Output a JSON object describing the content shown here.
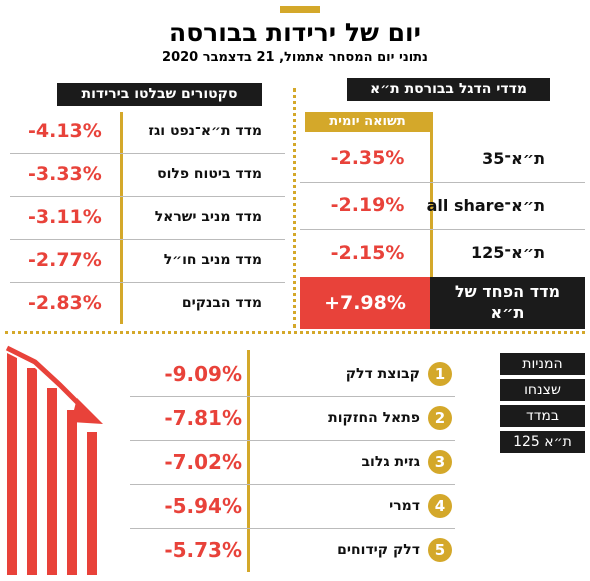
{
  "header": {
    "title": "יום של ירידות בבורסה",
    "subtitle": "נתוני יום המסחר אתמול, 21 בדצמבר 2020"
  },
  "flagship": {
    "title": "מדדי הדגל בבורסת ת״א",
    "column": "תשואה יומית",
    "rows": [
      {
        "name": "ת״א־35",
        "value": "-2.35%"
      },
      {
        "name": "ת״א־all share",
        "value": "-2.19%"
      },
      {
        "name": "ת״א־125",
        "value": "-2.15%"
      },
      {
        "name": "מדד הפחד של ת״א",
        "value": "+7.98%"
      }
    ]
  },
  "sectors": {
    "title": "סקטורים שבלטו בירידות",
    "rows": [
      {
        "name": "מדד ת״א־נפט וגז",
        "value": "-4.13%"
      },
      {
        "name": "מדד ביטוח פלוס",
        "value": "-3.33%"
      },
      {
        "name": "מדד מניב ישראל",
        "value": "-3.11%"
      },
      {
        "name": "מדד מניב חו״ל",
        "value": "-2.77%"
      },
      {
        "name": "מדד הבנקים",
        "value": "-2.83%"
      }
    ]
  },
  "stocks": {
    "label": [
      "המניות",
      "שצנחו",
      "במדד",
      "ת״א 125"
    ],
    "rows": [
      {
        "rank": 1,
        "name": "קבוצת דלק",
        "value": "-9.09%"
      },
      {
        "rank": 2,
        "name": "פתאל החזקות",
        "value": "-7.81%"
      },
      {
        "rank": 3,
        "name": "גזית גלוב",
        "value": "-7.02%"
      },
      {
        "rank": 4,
        "name": "דמרי",
        "value": "-5.94%"
      },
      {
        "rank": 5,
        "name": "דלק קידוחים",
        "value": "-5.73%"
      }
    ]
  }
}
